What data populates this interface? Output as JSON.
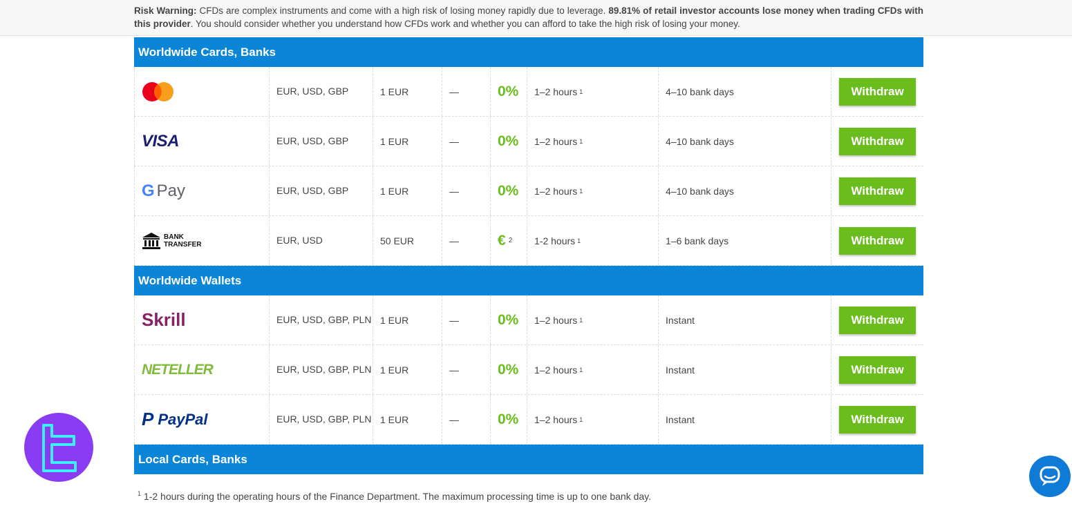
{
  "risk": {
    "label": "Risk Warning:",
    "text1": " CFDs are complex instruments and come with a high risk of losing money rapidly due to leverage. ",
    "bold": "89.81% of retail investor accounts lose money when trading CFDs with this provider",
    "text2": ". You should consider whether you understand how CFDs work and whether you can afford to take the high risk of losing your money."
  },
  "sections": [
    {
      "title": "Worldwide Cards, Banks",
      "rows": [
        {
          "logo": "mastercard-logo",
          "currencies": "EUR, USD, GBP",
          "min": "1 EUR",
          "max": "—",
          "fee": "0%",
          "time": "1–2 hours",
          "time_note": "1",
          "settle": "4–10 bank days",
          "button": "Withdraw"
        },
        {
          "logo": "visa-logo",
          "logo_text": "VISA",
          "currencies": "EUR, USD, GBP",
          "min": "1 EUR",
          "max": "—",
          "fee": "0%",
          "time": "1–2 hours",
          "time_note": "1",
          "settle": "4–10 bank days",
          "button": "Withdraw"
        },
        {
          "logo": "gpay-logo",
          "logo_text": "Pay",
          "currencies": "EUR, USD, GBP",
          "min": "1 EUR",
          "max": "—",
          "fee": "0%",
          "time": "1–2 hours",
          "time_note": "1",
          "settle": "4–10 bank days",
          "button": "Withdraw"
        },
        {
          "logo": "bank-transfer-logo",
          "logo_text": "BANK TRANSFER",
          "currencies": "EUR, USD",
          "min": "50 EUR",
          "max": "—",
          "fee": "€",
          "fee_note": "2",
          "time": "1-2 hours",
          "time_note": "1",
          "settle": "1–6 bank days",
          "button": "Withdraw"
        }
      ]
    },
    {
      "title": "Worldwide Wallets",
      "rows": [
        {
          "logo": "skrill-logo",
          "logo_text": "Skrill",
          "currencies": "EUR, USD, GBP, PLN",
          "min": "1 EUR",
          "max": "—",
          "fee": "0%",
          "time": "1–2 hours",
          "time_note": "1",
          "settle": "Instant",
          "button": "Withdraw"
        },
        {
          "logo": "neteller-logo",
          "logo_text": "NETELLER",
          "currencies": "EUR, USD, GBP, PLN",
          "min": "1 EUR",
          "max": "—",
          "fee": "0%",
          "time": "1–2 hours",
          "time_note": "1",
          "settle": "Instant",
          "button": "Withdraw"
        },
        {
          "logo": "paypal-logo",
          "logo_text": "PayPal",
          "currencies": "EUR, USD, GBP, PLN",
          "min": "1 EUR",
          "max": "—",
          "fee": "0%",
          "time": "1–2 hours",
          "time_note": "1",
          "settle": "Instant",
          "button": "Withdraw"
        }
      ]
    },
    {
      "title": "Local Cards, Banks",
      "rows": []
    }
  ],
  "footnote": {
    "mark": "1",
    "text": "1-2 hours during the operating hours of the Finance Department. The maximum processing time is up to one bank day."
  },
  "colors": {
    "header_bg": "#0b85d7",
    "button_bg": "#6bbd1e",
    "fee_text": "#6bbd1e",
    "brand_badge": "#8a3cf2",
    "chat_button": "#0f7bd6"
  }
}
